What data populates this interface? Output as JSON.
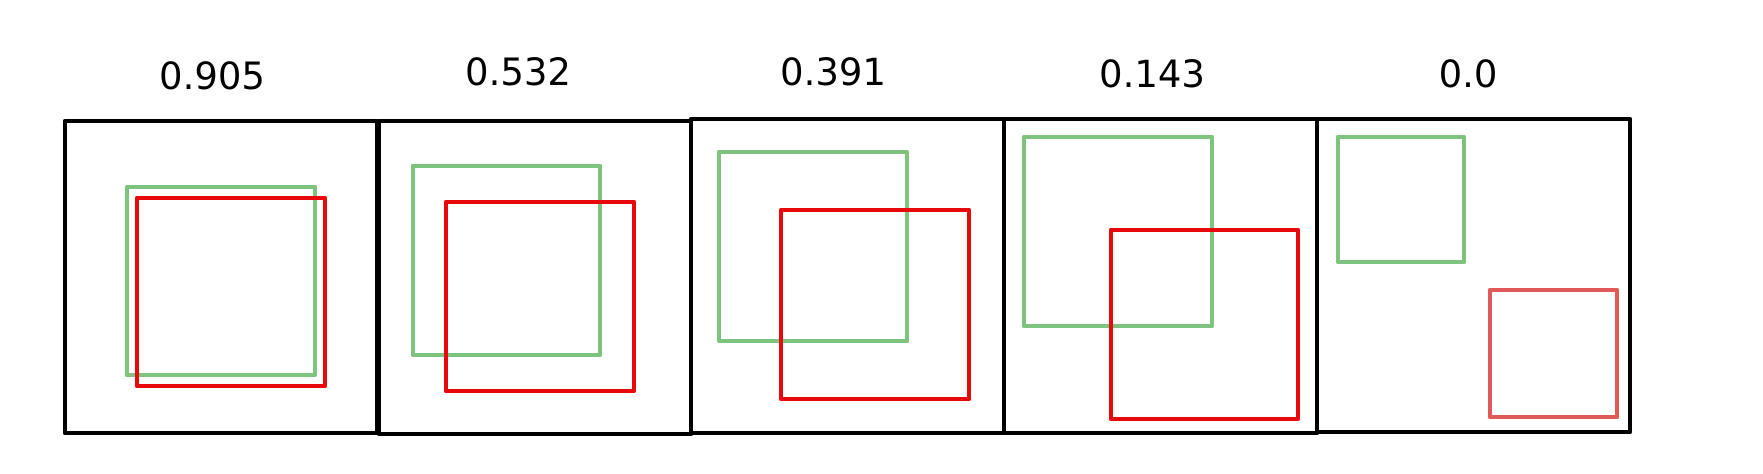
{
  "colors": {
    "background": "#ffffff",
    "frame": "#000000",
    "green_box": "#7ec47e",
    "red_box": "#e8090d",
    "red_box_faded": "#e05a5a"
  },
  "panels": [
    {
      "score": "0.905"
    },
    {
      "score": "0.532"
    },
    {
      "score": "0.391"
    },
    {
      "score": "0.143"
    },
    {
      "score": "0.0"
    }
  ]
}
